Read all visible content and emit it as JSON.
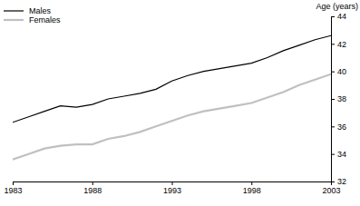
{
  "chart_data": {
    "type": "line",
    "y_label": "Age (years)",
    "x": [
      1983,
      1984,
      1985,
      1986,
      1987,
      1988,
      1989,
      1990,
      1991,
      1992,
      1993,
      1994,
      1995,
      1996,
      1997,
      1998,
      1999,
      2000,
      2001,
      2002,
      2003
    ],
    "series": [
      {
        "name": "Males",
        "color": "#000000",
        "values": [
          36.3,
          36.7,
          37.1,
          37.5,
          37.4,
          37.6,
          38.0,
          38.2,
          38.4,
          38.7,
          39.3,
          39.7,
          40.0,
          40.2,
          40.4,
          40.6,
          41.0,
          41.5,
          41.9,
          42.3,
          42.6
        ]
      },
      {
        "name": "Females",
        "color": "#c0c0c0",
        "values": [
          33.6,
          34.0,
          34.4,
          34.6,
          34.7,
          34.7,
          35.1,
          35.3,
          35.6,
          36.0,
          36.4,
          36.8,
          37.1,
          37.3,
          37.5,
          37.7,
          38.1,
          38.5,
          39.0,
          39.4,
          39.8
        ]
      }
    ],
    "xlim": [
      1983,
      2003
    ],
    "xticks": [
      1983,
      1988,
      1993,
      1998,
      2003
    ],
    "ylim": [
      32,
      44
    ],
    "yticks": [
      32,
      34,
      36,
      38,
      40,
      42,
      44
    ],
    "legend": "upper left"
  }
}
